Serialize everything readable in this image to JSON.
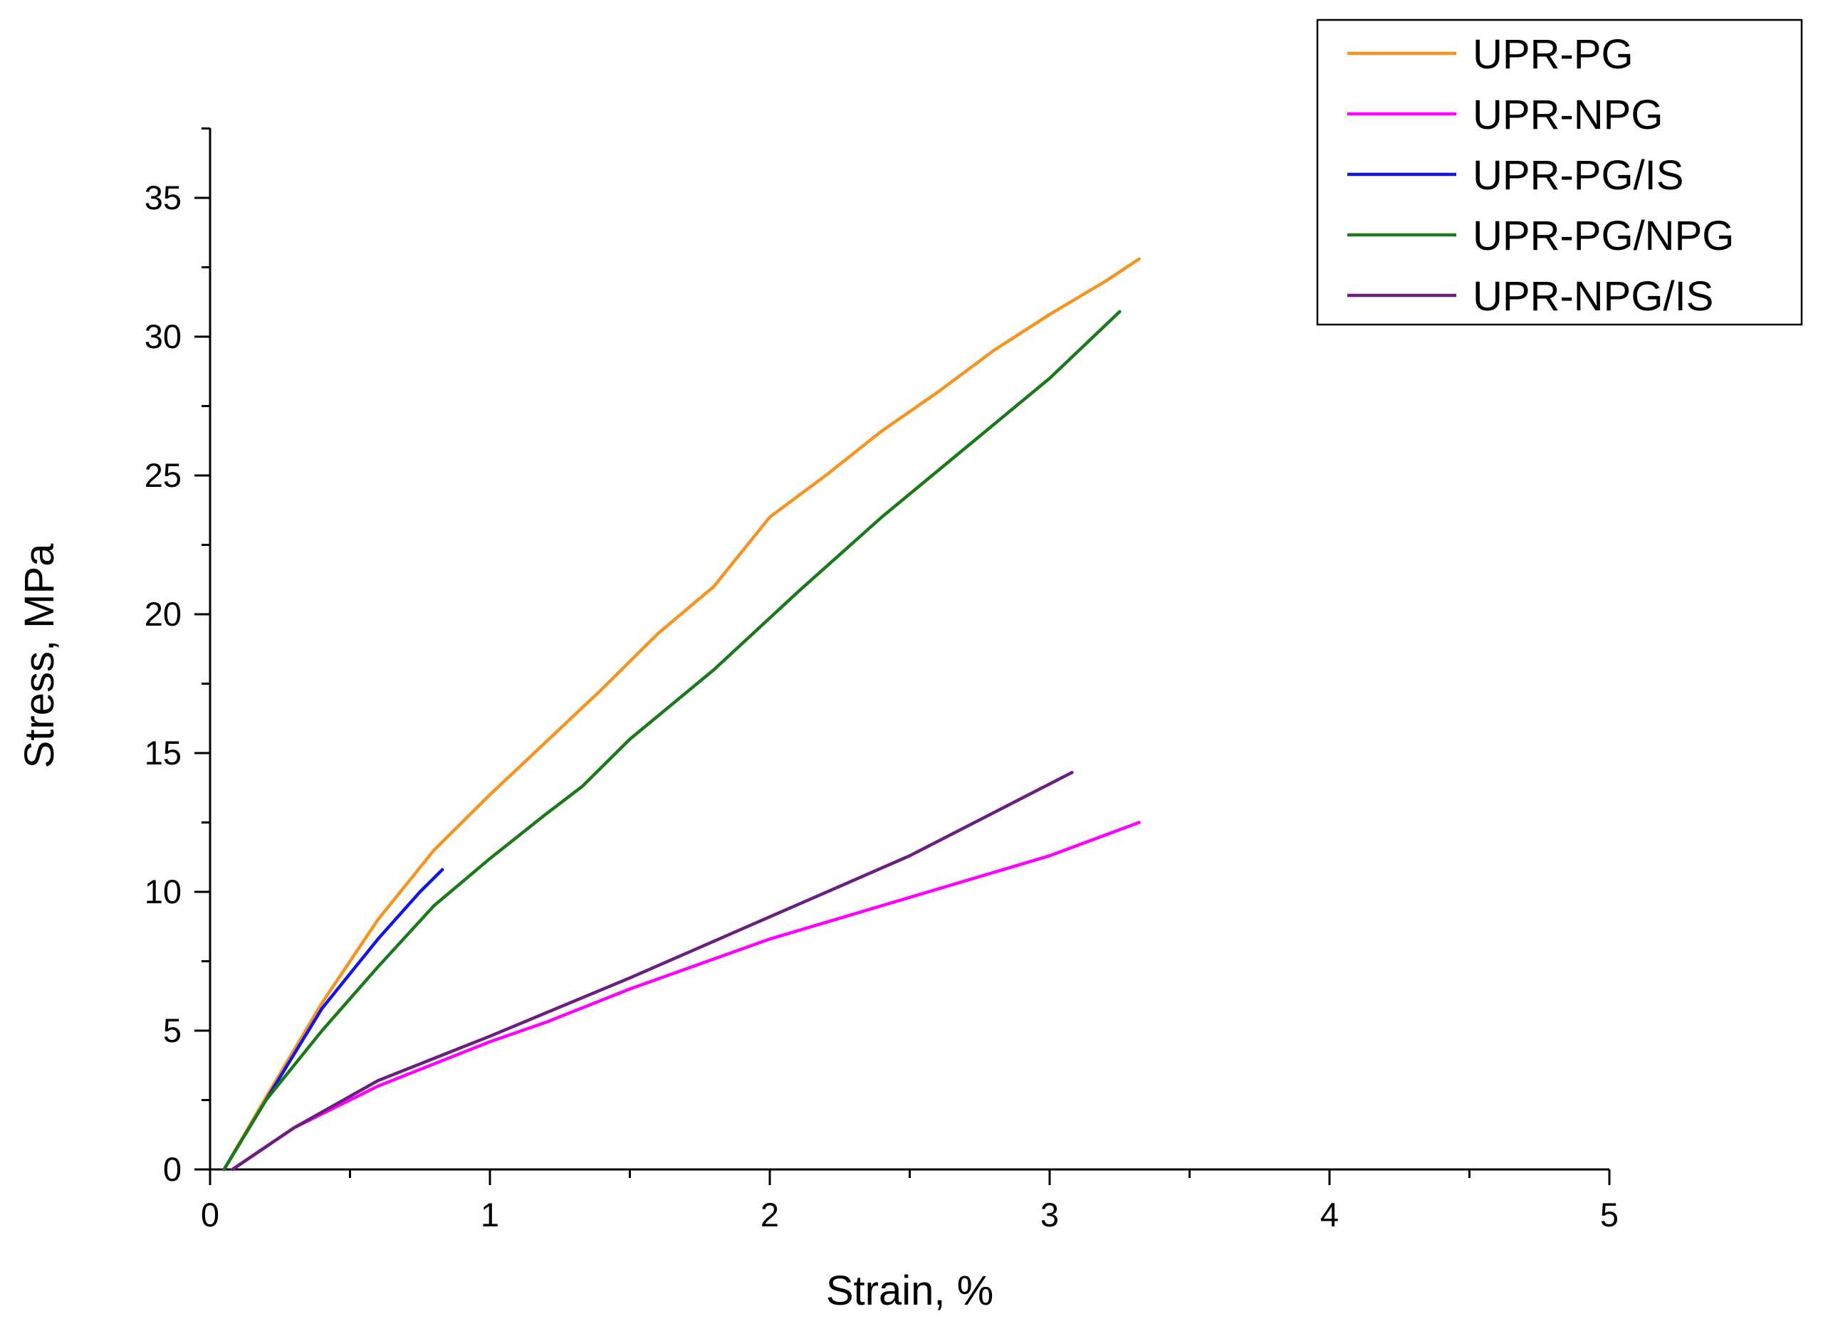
{
  "chart_data": {
    "type": "line",
    "xlabel": "Strain, %",
    "ylabel": "Stress, MPa",
    "xlim": [
      0,
      5
    ],
    "ylim": [
      0,
      37.5
    ],
    "x_ticks": [
      0,
      1,
      2,
      3,
      4,
      5
    ],
    "y_ticks": [
      0,
      5,
      10,
      15,
      20,
      25,
      30,
      35
    ],
    "grid": false,
    "legend_position": "top-right",
    "series": [
      {
        "name": "UPR-PG",
        "color": "#f7931e",
        "points": [
          [
            0.05,
            0
          ],
          [
            0.2,
            2.6
          ],
          [
            0.4,
            6.0
          ],
          [
            0.6,
            9.0
          ],
          [
            0.8,
            11.5
          ],
          [
            1.0,
            13.5
          ],
          [
            1.2,
            15.4
          ],
          [
            1.4,
            17.3
          ],
          [
            1.6,
            19.3
          ],
          [
            1.8,
            21.0
          ],
          [
            2.0,
            23.5
          ],
          [
            2.2,
            25.0
          ],
          [
            2.4,
            26.6
          ],
          [
            2.6,
            28.0
          ],
          [
            2.8,
            29.5
          ],
          [
            3.0,
            30.8
          ],
          [
            3.2,
            32.0
          ],
          [
            3.32,
            32.8
          ]
        ]
      },
      {
        "name": "UPR-NPG",
        "color": "#ff00ff",
        "points": [
          [
            0.08,
            0
          ],
          [
            0.3,
            1.5
          ],
          [
            0.6,
            3.0
          ],
          [
            1.0,
            4.6
          ],
          [
            1.2,
            5.3
          ],
          [
            1.5,
            6.5
          ],
          [
            2.0,
            8.3
          ],
          [
            2.5,
            9.8
          ],
          [
            3.0,
            11.3
          ],
          [
            3.32,
            12.5
          ]
        ]
      },
      {
        "name": "UPR-PG/IS",
        "color": "#1414e6",
        "points": [
          [
            0.05,
            0
          ],
          [
            0.2,
            2.5
          ],
          [
            0.4,
            5.8
          ],
          [
            0.6,
            8.3
          ],
          [
            0.75,
            10.0
          ],
          [
            0.83,
            10.8
          ]
        ]
      },
      {
        "name": "UPR-PG/NPG",
        "color": "#1a7a1a",
        "points": [
          [
            0.05,
            0
          ],
          [
            0.2,
            2.5
          ],
          [
            0.4,
            5.0
          ],
          [
            0.6,
            7.3
          ],
          [
            0.8,
            9.5
          ],
          [
            1.0,
            11.2
          ],
          [
            1.2,
            12.8
          ],
          [
            1.33,
            13.8
          ],
          [
            1.5,
            15.5
          ],
          [
            1.8,
            18.0
          ],
          [
            2.1,
            20.8
          ],
          [
            2.4,
            23.5
          ],
          [
            2.7,
            26.0
          ],
          [
            3.0,
            28.5
          ],
          [
            3.25,
            30.9
          ]
        ]
      },
      {
        "name": "UPR-NPG/IS",
        "color": "#6a1f7f",
        "points": [
          [
            0.08,
            0
          ],
          [
            0.3,
            1.5
          ],
          [
            0.6,
            3.2
          ],
          [
            1.0,
            4.8
          ],
          [
            1.5,
            6.9
          ],
          [
            2.0,
            9.1
          ],
          [
            2.5,
            11.3
          ],
          [
            3.08,
            14.3
          ]
        ]
      }
    ]
  }
}
